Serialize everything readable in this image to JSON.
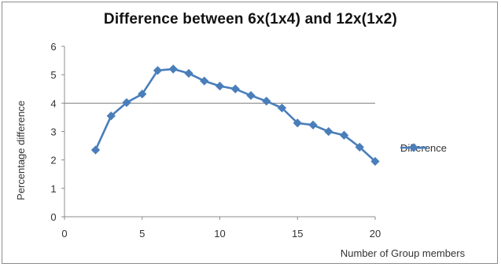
{
  "chart_data": {
    "type": "line",
    "title": "Difference between 6x(1x4) and 12x(1x2)",
    "xlabel": "Number of  Group members",
    "ylabel": "Percentage difference",
    "xlim": [
      0,
      20
    ],
    "ylim": [
      0,
      6
    ],
    "xticks": [
      0,
      5,
      10,
      15,
      20
    ],
    "yticks": [
      0,
      1,
      2,
      3,
      4,
      5,
      6
    ],
    "reference_line": {
      "y": 4,
      "color": "#7f7f7f"
    },
    "legend": {
      "position": "right"
    },
    "grid": false,
    "series": [
      {
        "name": "Difference",
        "color": "#4a7ebb",
        "x": [
          2,
          3,
          4,
          5,
          6,
          7,
          8,
          9,
          10,
          11,
          12,
          13,
          14,
          15,
          16,
          17,
          18,
          19,
          20
        ],
        "values": [
          2.35,
          3.55,
          4.02,
          4.32,
          5.15,
          5.2,
          5.05,
          4.78,
          4.6,
          4.5,
          4.27,
          4.07,
          3.83,
          3.3,
          3.23,
          3.0,
          2.87,
          2.45,
          1.95
        ]
      }
    ]
  }
}
